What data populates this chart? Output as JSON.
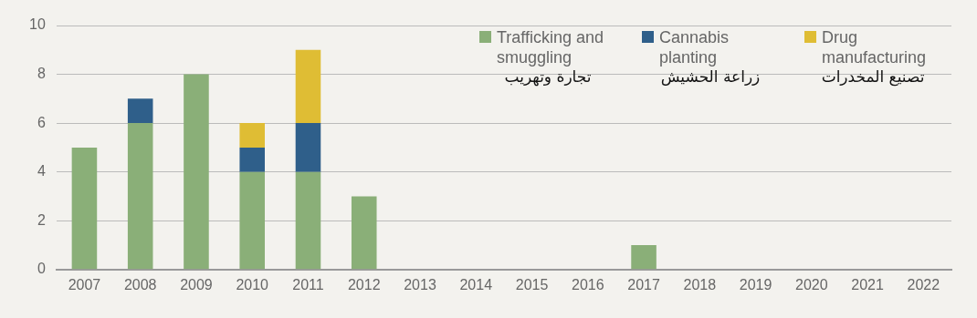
{
  "chart_data": {
    "type": "bar",
    "stacked": true,
    "categories": [
      "2007",
      "2008",
      "2009",
      "2010",
      "2011",
      "2012",
      "2013",
      "2014",
      "2015",
      "2016",
      "2017",
      "2018",
      "2019",
      "2020",
      "2021",
      "2022"
    ],
    "series": [
      {
        "name": "Trafficking and smuggling",
        "color": "#8aaf78",
        "values": [
          5,
          6,
          8,
          4,
          4,
          3,
          0,
          0,
          0,
          0,
          1,
          0,
          0,
          0,
          0,
          0
        ]
      },
      {
        "name": "Cannabis planting",
        "color": "#2f5f8a",
        "values": [
          0,
          1,
          0,
          1,
          2,
          0,
          0,
          0,
          0,
          0,
          0,
          0,
          0,
          0,
          0,
          0
        ]
      },
      {
        "name": "Drug manufacturing",
        "color": "#dfbd34",
        "values": [
          0,
          0,
          0,
          1,
          3,
          0,
          0,
          0,
          0,
          0,
          0,
          0,
          0,
          0,
          0,
          0
        ]
      }
    ],
    "annotations": [
      "تجارة وتهريب",
      "زراعة الحشيش",
      "تصنيع المخدرات"
    ],
    "ylim": [
      0,
      10
    ],
    "yticks": [
      0,
      2,
      4,
      6,
      8,
      10
    ],
    "grid": "y",
    "legend": "top right"
  }
}
